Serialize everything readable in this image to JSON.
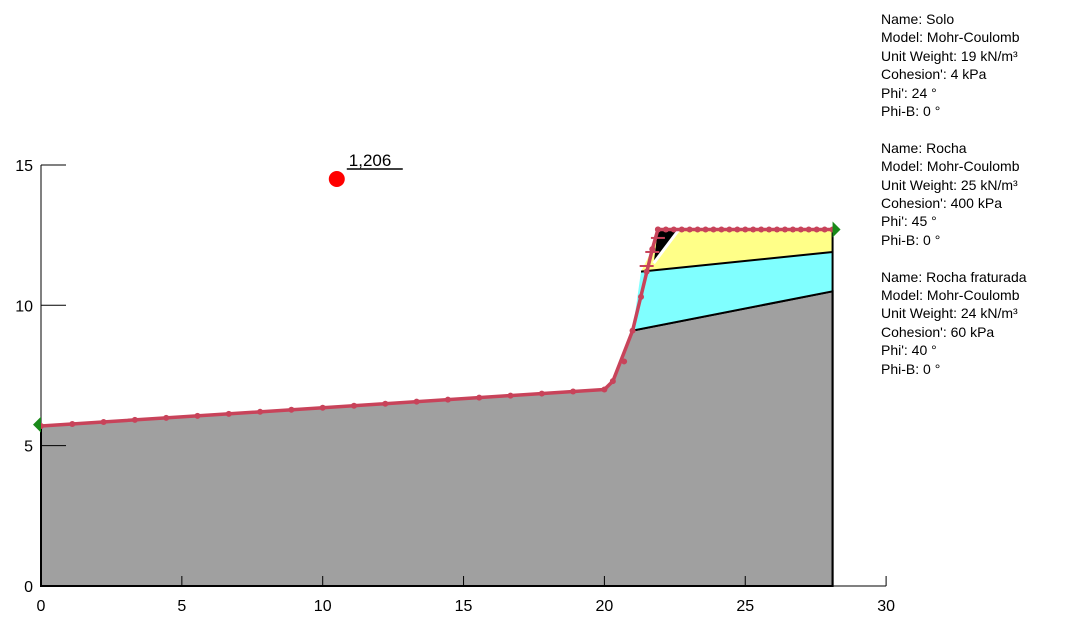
{
  "chart_data": {
    "type": "diagram",
    "x_ticks": [
      "0",
      "5",
      "10",
      "15",
      "20",
      "25",
      "30"
    ],
    "y_ticks": [
      "0",
      "5",
      "10",
      "15"
    ],
    "xlim": [
      0,
      30
    ],
    "ylim": [
      0,
      15
    ],
    "factor_of_safety": "1,206",
    "slip_center": [
      10.5,
      14.5
    ],
    "ground_profile": [
      [
        0,
        5.7
      ],
      [
        20,
        7.0
      ],
      [
        20.3,
        7.3
      ],
      [
        21.0,
        9.1
      ],
      [
        21.7,
        12.0
      ],
      [
        21.9,
        12.7
      ],
      [
        28.1,
        12.7
      ]
    ],
    "boundaries": {
      "solo_rocha": [
        [
          21.3,
          11.2
        ],
        [
          28.1,
          11.9
        ]
      ],
      "rocha_fraturada": [
        [
          21.0,
          9.1
        ],
        [
          28.1,
          10.5
        ]
      ]
    },
    "colors": {
      "solo": "#ffff88",
      "rocha": "#80ffff",
      "rocha_fraturada": "#a0a0a0",
      "slip_surface": "#c8435a",
      "center": "#ff0000",
      "wedge": "#000000",
      "flag": "#1a8a1a"
    }
  },
  "materials": [
    {
      "name": "Name: Solo",
      "model": "Model: Mohr-Coulomb",
      "unit_weight": "Unit Weight: 19 kN/m³",
      "cohesion": "Cohesion': 4 kPa",
      "phi": "Phi': 24 °",
      "phi_b": "Phi-B: 0 °"
    },
    {
      "name": "Name: Rocha",
      "model": "Model: Mohr-Coulomb",
      "unit_weight": "Unit Weight: 25 kN/m³",
      "cohesion": "Cohesion': 400 kPa",
      "phi": "Phi': 45 °",
      "phi_b": "Phi-B: 0 °"
    },
    {
      "name": "Name: Rocha fraturada",
      "model": "Model: Mohr-Coulomb",
      "unit_weight": "Unit Weight: 24 kN/m³",
      "cohesion": "Cohesion': 60 kPa",
      "phi": "Phi': 40 °",
      "phi_b": "Phi-B: 0 °"
    }
  ]
}
